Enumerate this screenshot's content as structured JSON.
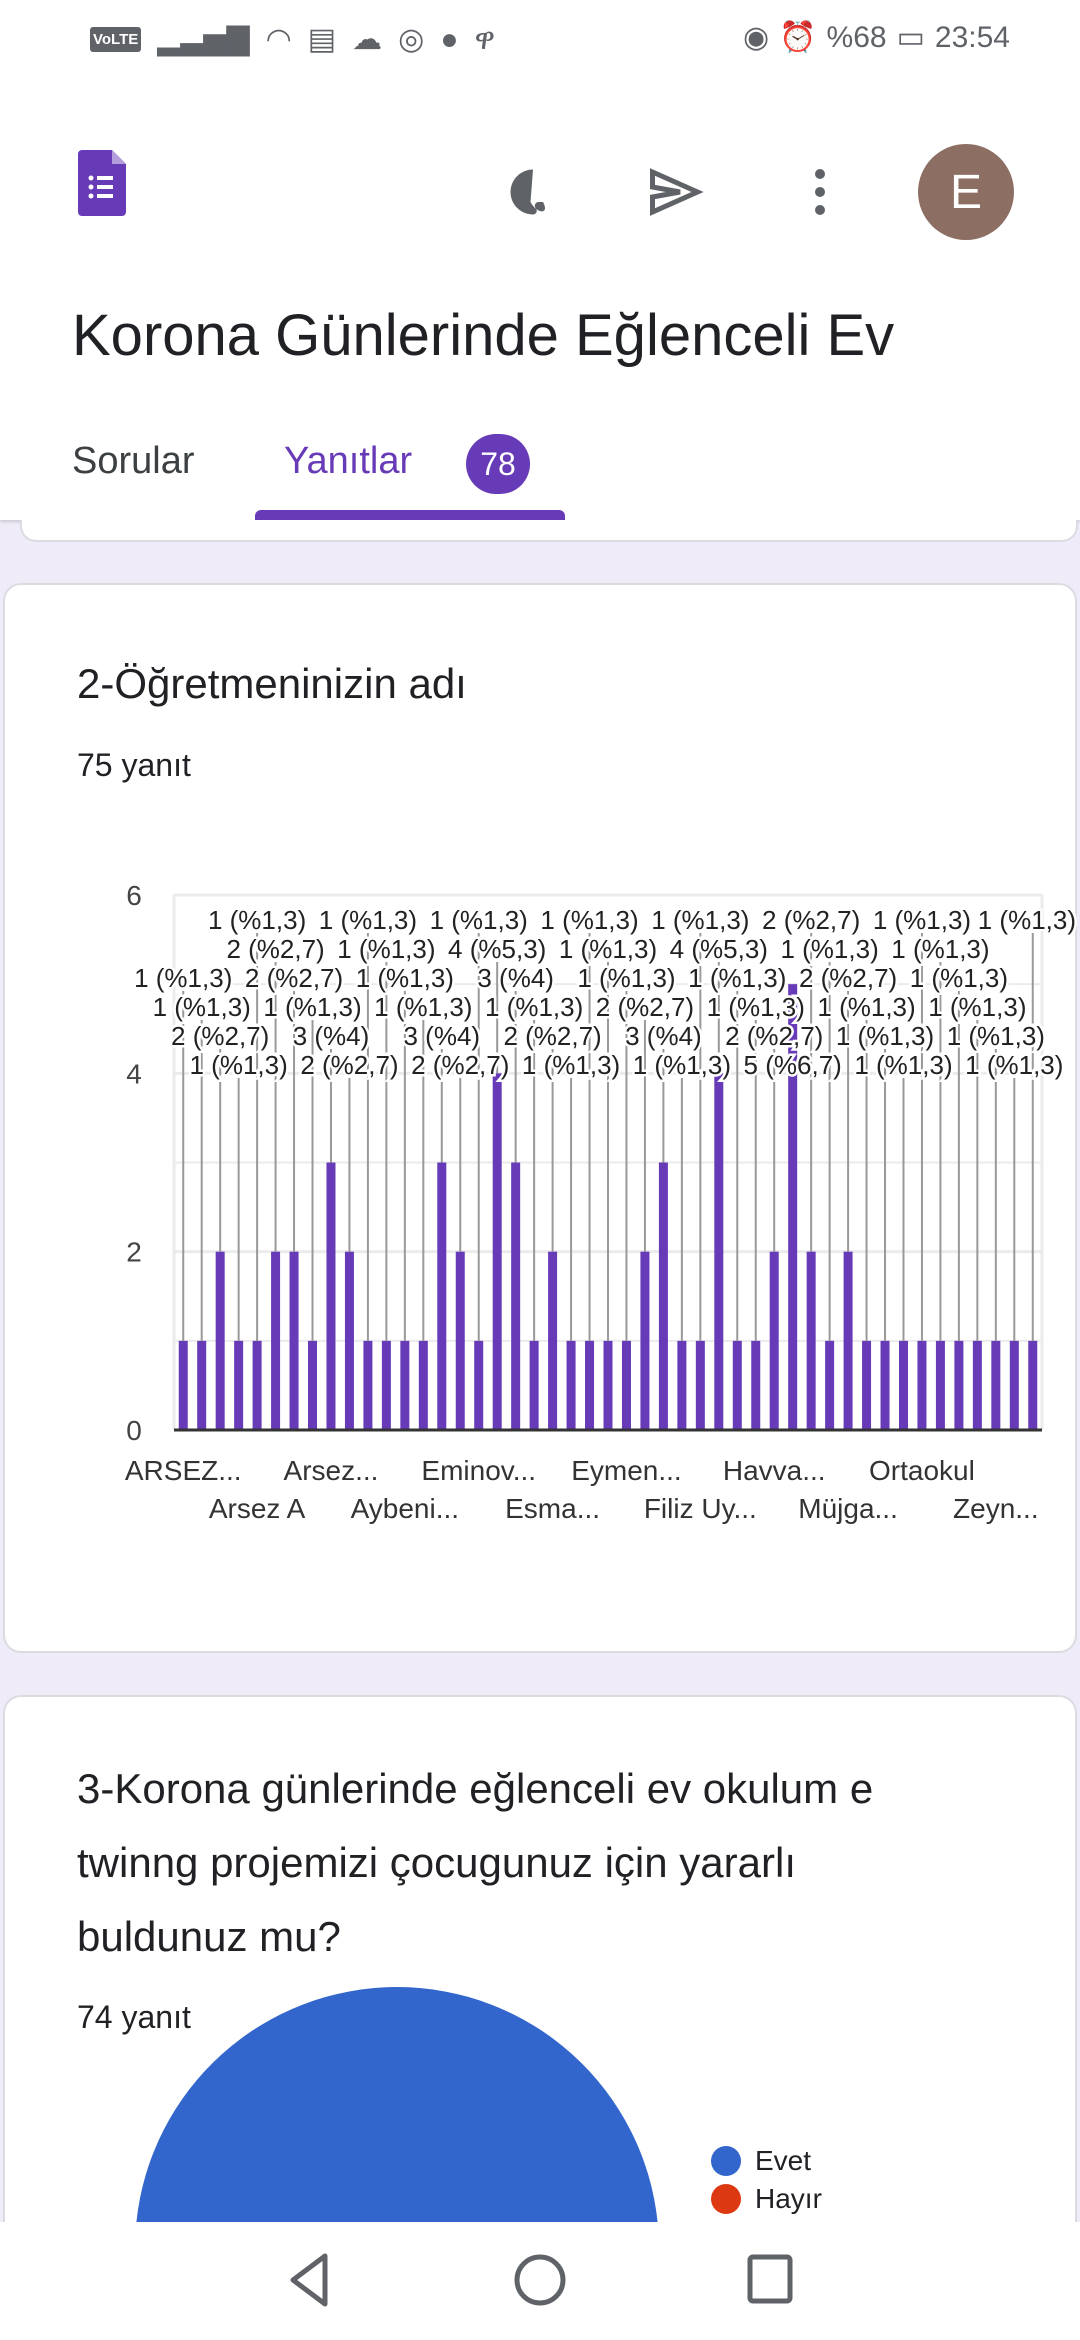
{
  "status_bar": {
    "volte": "VoLTE",
    "battery": "%68",
    "time": "23:54",
    "icons": [
      "signal-icon",
      "wifi-icon",
      "news-icon",
      "cloud-icon",
      "chrome-icon",
      "messenger-icon",
      "key-icon",
      "eye-icon",
      "alarm-icon",
      "battery-icon"
    ]
  },
  "header": {
    "title": "Korona Günlerinde Eğlenceli Ev",
    "avatar_letter": "E",
    "tabs": [
      {
        "label": "Sorular"
      },
      {
        "label": "Yanıtlar",
        "badge": "78",
        "active": true
      }
    ],
    "accent": "#673ab7"
  },
  "question2": {
    "title": "2-Öğretmeninizin adı",
    "count": "75 yanıt"
  },
  "chart_data": {
    "type": "bar",
    "title": "",
    "xlabel": "",
    "ylabel": "",
    "ylim": [
      0,
      6
    ],
    "yticks": [
      0,
      2,
      4,
      6
    ],
    "grid": true,
    "bar_color": "#673ab7",
    "x_tick_labels": [
      "ARSEZ...",
      "Arsez A",
      "Arsez...",
      "Aybeni...",
      "Eminov...",
      "Esma...",
      "Eymen...",
      "Filiz Uy...",
      "Havva...",
      "Müjga...",
      "Ortaokul",
      "Zeyn..."
    ],
    "x_tick_every": 4,
    "values": [
      1,
      1,
      2,
      1,
      1,
      2,
      2,
      1,
      3,
      2,
      1,
      1,
      1,
      1,
      3,
      2,
      1,
      4,
      3,
      1,
      2,
      1,
      1,
      1,
      1,
      2,
      3,
      1,
      1,
      4,
      1,
      1,
      2,
      5,
      2,
      1,
      2,
      1,
      1,
      1,
      1,
      1,
      1,
      1,
      1,
      1,
      1
    ],
    "value_labels": {
      "1": "1 (%1,3)",
      "2": "2 (%2,7)",
      "3": "3 (%4)",
      "4": "4 (%5,3)",
      "5": "5 (%6,7)"
    }
  },
  "question3": {
    "title": "3-Korona günlerinde eğlenceli ev okulum e twinng projemizi çocugunuz için yararlı buldunuz mu?",
    "count": "74 yanıt",
    "legend": [
      {
        "label": "Evet",
        "color": "#3366cc"
      },
      {
        "label": "Hayır",
        "color": "#dc3912"
      }
    ]
  }
}
